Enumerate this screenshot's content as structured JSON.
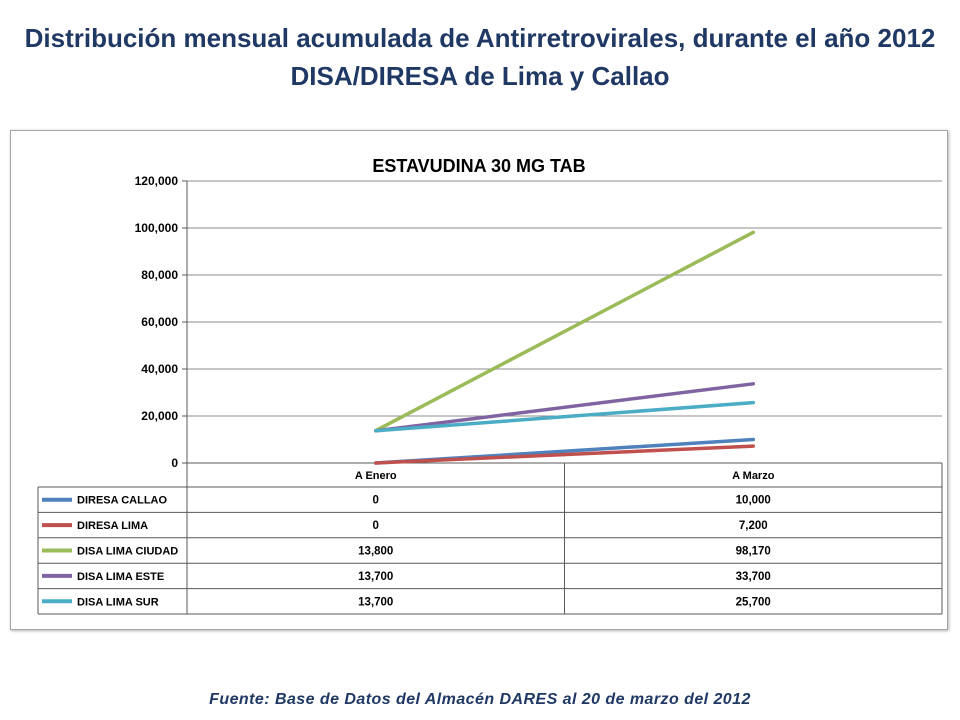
{
  "slide": {
    "title": "Distribución mensual acumulada de Antirretrovirales, durante el año 2012",
    "subtitle": "DISA/DIRESA de Lima y Callao",
    "footer": "Fuente: Base de Datos del Almacén DARES al 20 de marzo del 2012"
  },
  "colors": {
    "heading": "#1F3864",
    "gridline": "#8C8C8C",
    "table_border": "#595959"
  },
  "chart_data": {
    "type": "line",
    "title": "ESTAVUDINA 30 MG TAB",
    "categories": [
      "A Enero",
      "A Marzo"
    ],
    "ylim": [
      0,
      120000
    ],
    "yticks": [
      0,
      20000,
      40000,
      60000,
      80000,
      100000,
      120000
    ],
    "ytick_labels": [
      "0",
      "20,000",
      "40,000",
      "60,000",
      "80,000",
      "100,000",
      "120,000"
    ],
    "grid": true,
    "legend": "bottom",
    "data_table": true,
    "series": [
      {
        "name": "DIRESA CALLAO",
        "values": [
          0,
          10000
        ],
        "table_text": [
          "0",
          "10,000"
        ],
        "color": "#4F81BD"
      },
      {
        "name": "DIRESA LIMA",
        "values": [
          0,
          7200
        ],
        "table_text": [
          "0",
          "7,200"
        ],
        "color": "#C0504D"
      },
      {
        "name": "DISA LIMA CIUDAD",
        "values": [
          13800,
          98170
        ],
        "table_text": [
          "13,800",
          "98,170"
        ],
        "color": "#9BBB59"
      },
      {
        "name": "DISA LIMA ESTE",
        "values": [
          13700,
          33700
        ],
        "table_text": [
          "13,700",
          "33,700"
        ],
        "color": "#8064A2"
      },
      {
        "name": "DISA LIMA SUR",
        "values": [
          13700,
          25700
        ],
        "table_text": [
          "13,700",
          "25,700"
        ],
        "color": "#4BACC6"
      }
    ]
  }
}
